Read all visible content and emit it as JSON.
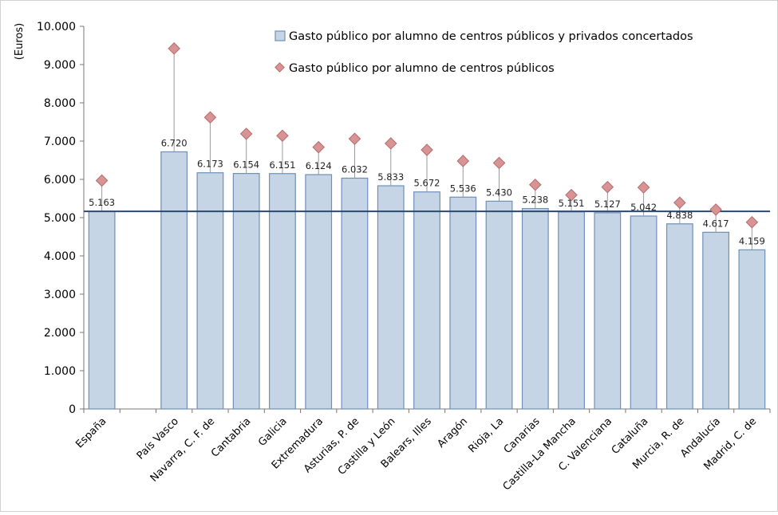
{
  "chart_data": {
    "type": "bar",
    "ylabel": "(Euros)",
    "ylim": [
      0,
      10000
    ],
    "yticks": [
      0,
      1000,
      2000,
      3000,
      4000,
      5000,
      6000,
      7000,
      8000,
      9000,
      10000
    ],
    "ytick_labels": [
      "0",
      "1.000",
      "2.000",
      "3.000",
      "4.000",
      "5.000",
      "6.000",
      "7.000",
      "8.000",
      "9.000",
      "10.000"
    ],
    "grid": false,
    "legend_position": "top-right",
    "categories": [
      "España",
      "",
      "País Vasco",
      "Navarra, C. F. de",
      "Cantabria",
      "Galicia",
      "Extremadura",
      "Asturias, P. de",
      "Castilla y León",
      "Balears, Illes",
      "Aragón",
      "Rioja, La",
      "Canarias",
      "Castilla-La Mancha",
      "C. Valenciana",
      "Cataluña",
      "Murcia, R. de",
      "Andalucía",
      "Madrid, C. de"
    ],
    "reference_line": 5163,
    "series": [
      {
        "name": "Gasto público por alumno de centros públicos y privados concertados",
        "kind": "bar",
        "values": [
          5163,
          null,
          6720,
          6173,
          6154,
          6151,
          6124,
          6032,
          5833,
          5672,
          5536,
          5430,
          5238,
          5151,
          5127,
          5042,
          4838,
          4617,
          4159
        ],
        "labels": [
          "5.163",
          "",
          "6.720",
          "6.173",
          "6.154",
          "6.151",
          "6.124",
          "6.032",
          "5.833",
          "5.672",
          "5.536",
          "5.430",
          "5.238",
          "5.151",
          "5.127",
          "5.042",
          "4.838",
          "4.617",
          "4.159"
        ]
      },
      {
        "name": "Gasto público por alumno de centros públicos",
        "kind": "marker",
        "values": [
          5970,
          null,
          9420,
          7620,
          7190,
          7140,
          6840,
          7060,
          6940,
          6770,
          6480,
          6430,
          5860,
          5590,
          5800,
          5790,
          5390,
          5210,
          4880
        ]
      }
    ],
    "colors": {
      "bar_fill": "#c5d5e6",
      "bar_stroke": "#6f8fb5",
      "marker_fill": "#d89494",
      "marker_stroke": "#b56a6a",
      "reference_line": "#2e4a6b",
      "axis": "#777777",
      "drop_line": "#9a9a9a"
    }
  }
}
